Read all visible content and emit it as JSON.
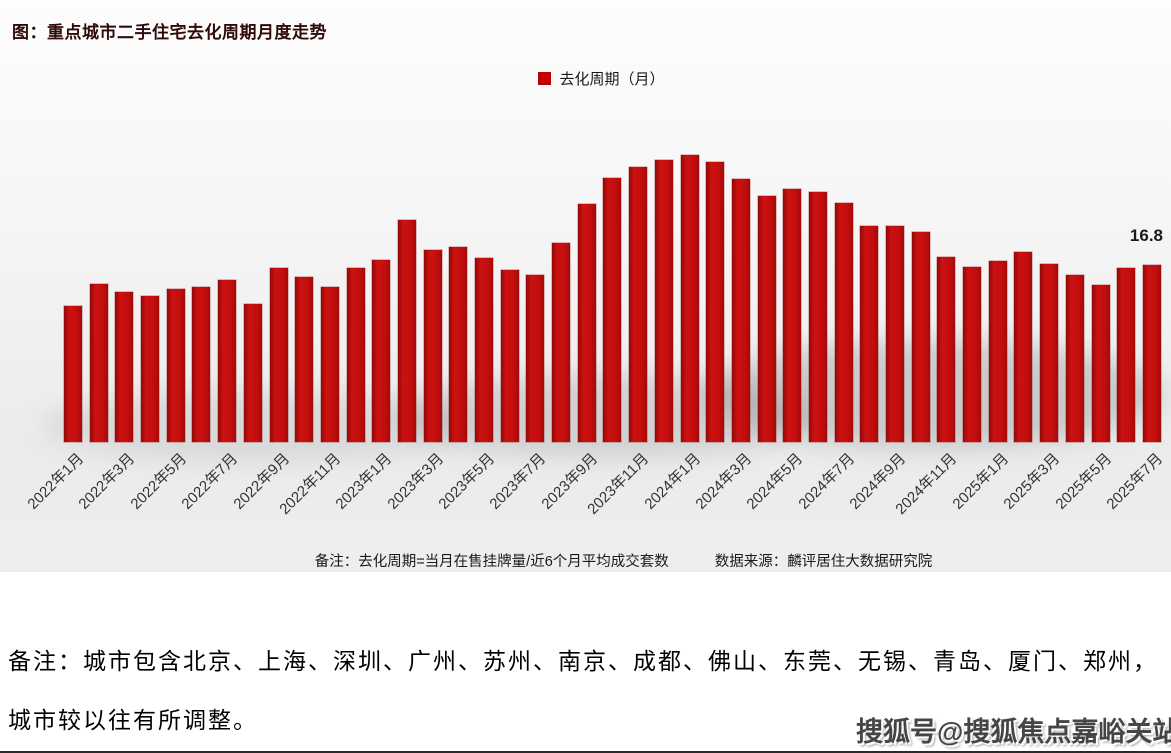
{
  "chart": {
    "title": "图：重点城市二手住宅去化周期月度走势",
    "legend_label": "去化周期（月）",
    "last_value_label": "16.8",
    "note": "备注：去化周期=当月在售挂牌量/近6个月平均成交套数",
    "source": "数据来源：麟评居住大数据研究院"
  },
  "chart_data": {
    "type": "bar",
    "title": "重点城市二手住宅去化周期月度走势",
    "legend": [
      "去化周期（月）"
    ],
    "legend_position": "top-center",
    "grid": false,
    "bar_color": "#c00d0d",
    "ylim": [
      0,
      30
    ],
    "xlabel": "",
    "ylabel": "去化周期（月）",
    "x_tick_every": 2,
    "annotation": {
      "text": "16.8",
      "category": "2025年7月"
    },
    "categories": [
      "2022年1月",
      "2022年2月",
      "2022年3月",
      "2022年4月",
      "2022年5月",
      "2022年6月",
      "2022年7月",
      "2022年8月",
      "2022年9月",
      "2022年10月",
      "2022年11月",
      "2022年12月",
      "2023年1月",
      "2023年2月",
      "2023年3月",
      "2023年4月",
      "2023年5月",
      "2023年6月",
      "2023年7月",
      "2023年8月",
      "2023年9月",
      "2023年10月",
      "2023年11月",
      "2023年12月",
      "2024年1月",
      "2024年2月",
      "2024年3月",
      "2024年4月",
      "2024年5月",
      "2024年6月",
      "2024年7月",
      "2024年8月",
      "2024年9月",
      "2024年10月",
      "2024年11月",
      "2024年12月",
      "2025年1月",
      "2025年2月",
      "2025年3月",
      "2025年4月",
      "2025年5月",
      "2025年6月",
      "2025年7月"
    ],
    "values": [
      12.9,
      15.0,
      14.2,
      13.8,
      14.5,
      14.7,
      15.3,
      13.1,
      16.5,
      15.6,
      14.7,
      16.5,
      17.2,
      21.0,
      18.2,
      18.5,
      17.4,
      16.3,
      15.8,
      18.8,
      22.5,
      25.0,
      26.0,
      26.7,
      27.2,
      26.5,
      24.9,
      23.3,
      24.0,
      23.7,
      22.6,
      20.5,
      20.5,
      19.9,
      17.5,
      16.6,
      17.1,
      18.0,
      16.9,
      15.8,
      14.9,
      16.5,
      16.8
    ]
  },
  "remark": {
    "line1": "备注：城市包含北京、上海、深圳、广州、苏州、南京、成都、佛山、东莞、无锡、青岛、厦门、郑州，",
    "line2": "城市较以往有所调整。"
  },
  "watermark": {
    "text": "搜狐号@搜狐焦点嘉峪关站"
  }
}
